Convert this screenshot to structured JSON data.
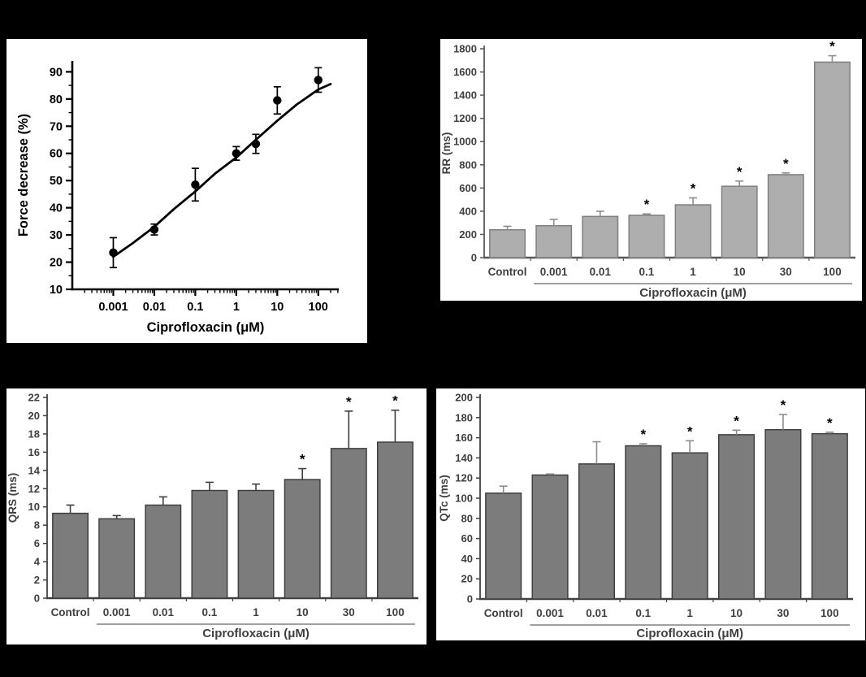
{
  "figure": {
    "background": "#000000",
    "panel_background": "#ffffff",
    "sig_marker": "*"
  },
  "chart_data": [
    {
      "id": "force",
      "type": "scatter",
      "title": "",
      "ylabel": "Force decrease (%)",
      "xlabel": "Ciprofloxacin (μM)",
      "xscale": "log",
      "xlim": [
        0.0001,
        316
      ],
      "ylim": [
        10,
        94
      ],
      "yticks": [
        10,
        20,
        30,
        40,
        50,
        60,
        70,
        80,
        90
      ],
      "xticks": [
        0.001,
        0.01,
        0.1,
        1,
        10,
        100
      ],
      "xtick_labels": [
        "0.001",
        "0.01",
        "0.1",
        "1",
        "10",
        "100"
      ],
      "x": [
        0.001,
        0.01,
        0.1,
        1,
        3,
        10,
        100
      ],
      "y": [
        23.5,
        32,
        48.5,
        60,
        63.5,
        79.5,
        87
      ],
      "yerr": [
        5.5,
        2,
        6,
        2.5,
        3.5,
        5,
        4.5
      ],
      "fit_curve": [
        [
          0.001,
          22
        ],
        [
          0.003,
          27
        ],
        [
          0.01,
          33
        ],
        [
          0.03,
          39.5
        ],
        [
          0.1,
          46
        ],
        [
          0.3,
          52.5
        ],
        [
          1,
          58.5
        ],
        [
          3,
          65
        ],
        [
          10,
          72
        ],
        [
          30,
          78
        ],
        [
          100,
          83.5
        ],
        [
          200,
          85.5
        ]
      ],
      "grid": false,
      "legend": "none",
      "colors": {
        "point": "#000000",
        "curve": "#000000",
        "axis": "#000000",
        "text": "#000000",
        "error": "#000000"
      }
    },
    {
      "id": "rr",
      "type": "bar",
      "title": "",
      "ylabel": "RR (ms)",
      "xlabel": "Ciprofloxacin  (μM)",
      "categories": [
        "Control",
        "0.001",
        "0.01",
        "0.1",
        "1",
        "10",
        "30",
        "100"
      ],
      "values": [
        240,
        275,
        355,
        365,
        455,
        615,
        715,
        1685
      ],
      "errors": [
        30,
        55,
        45,
        12,
        60,
        45,
        15,
        55
      ],
      "significant": [
        false,
        false,
        false,
        true,
        true,
        true,
        true,
        true
      ],
      "ylim": [
        0,
        1800
      ],
      "ytick_step": 200,
      "grid": false,
      "legend": "none",
      "group_underline": true,
      "colors": {
        "bar_fill": "#aeaeae",
        "bar_stroke": "#7f7f7f",
        "error": "#8c8c8c",
        "axis": "#595959",
        "text": "#3f3f3f",
        "sig": "#000000",
        "underline": "#808080"
      }
    },
    {
      "id": "qrs",
      "type": "bar",
      "title": "",
      "ylabel": "QRS (ms)",
      "xlabel": "Ciprofloxacin  (μM)",
      "categories": [
        "Control",
        "0.001",
        "0.01",
        "0.1",
        "1",
        "10",
        "30",
        "100"
      ],
      "values": [
        9.3,
        8.7,
        10.2,
        11.8,
        11.8,
        13.0,
        16.4,
        17.1
      ],
      "errors": [
        0.9,
        0.35,
        0.9,
        0.9,
        0.7,
        1.2,
        4.1,
        3.5
      ],
      "significant": [
        false,
        false,
        false,
        false,
        false,
        true,
        true,
        true
      ],
      "ylim": [
        0,
        22
      ],
      "ytick_step": 2,
      "grid": false,
      "legend": "none",
      "group_underline": true,
      "colors": {
        "bar_fill": "#7c7c7c",
        "bar_stroke": "#3f3f3f",
        "error": "#3f3f3f",
        "axis": "#404040",
        "text": "#3f3f3f",
        "sig": "#000000",
        "underline": "#808080"
      }
    },
    {
      "id": "qtc",
      "type": "bar",
      "title": "",
      "ylabel": "QTc (ms)",
      "xlabel": "Ciprofloxacin  (μM)",
      "categories": [
        "Control",
        "0.001",
        "0.01",
        "0.1",
        "1",
        "10",
        "30",
        "100"
      ],
      "values": [
        105,
        123,
        134,
        152,
        145,
        163,
        168,
        164
      ],
      "errors": [
        7,
        1,
        22,
        2,
        12,
        4.5,
        15,
        1.5
      ],
      "significant": [
        false,
        false,
        false,
        true,
        true,
        true,
        true,
        true
      ],
      "ylim": [
        0,
        200
      ],
      "ytick_step": 20,
      "grid": false,
      "legend": "none",
      "group_underline": true,
      "colors": {
        "bar_fill": "#7c7c7c",
        "bar_stroke": "#3f3f3f",
        "error": "#8c8c8c",
        "axis": "#404040",
        "text": "#3f3f3f",
        "sig": "#000000",
        "underline": "#808080"
      }
    }
  ]
}
